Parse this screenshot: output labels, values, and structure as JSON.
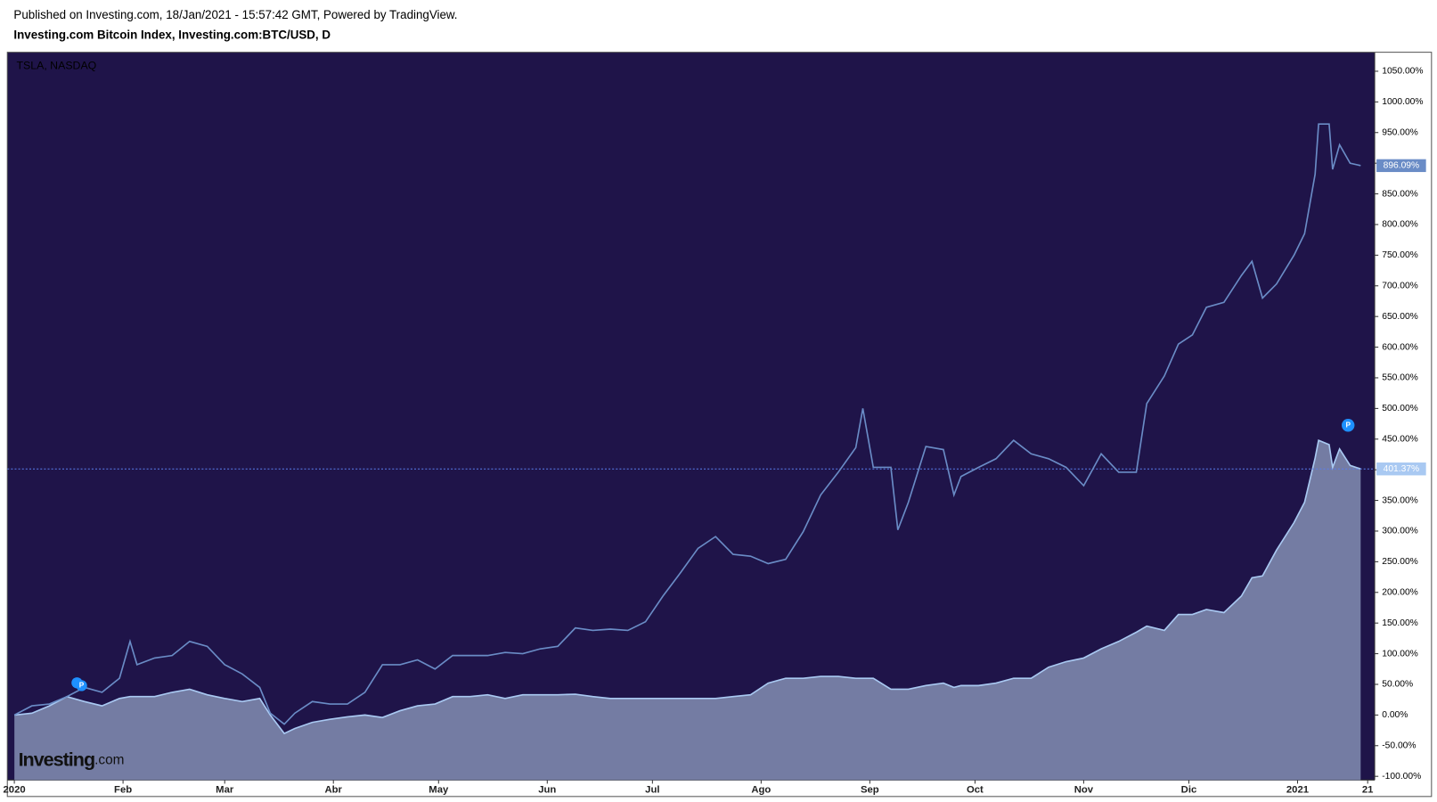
{
  "header": {
    "published": "Published on Investing.com, 18/Jan/2021 - 15:57:42 GMT, Powered by TradingView.",
    "symbol": "Investing.com Bitcoin Index, Investing.com:BTC/USD, D"
  },
  "logo": {
    "brand": "Investing",
    "suffix": ".com"
  },
  "chart_data": {
    "type": "line",
    "background": "#1f1449",
    "x": [
      0,
      5,
      10,
      15,
      20,
      25,
      30,
      33,
      35,
      40,
      45,
      50,
      55,
      60,
      65,
      70,
      73,
      77,
      80,
      85,
      90,
      95,
      100,
      105,
      110,
      115,
      120,
      125,
      130,
      135,
      140,
      145,
      150,
      155,
      160,
      165,
      170,
      175,
      180,
      185,
      190,
      195,
      200,
      205,
      210,
      215,
      220,
      225,
      230,
      235,
      240,
      242,
      245,
      250,
      252,
      255,
      260,
      265,
      268,
      270,
      275,
      280,
      285,
      290,
      295,
      300,
      305,
      310,
      315,
      320,
      323,
      328,
      332,
      336,
      340,
      345,
      350,
      353,
      356,
      360,
      365,
      368,
      371,
      372,
      375,
      376,
      378,
      381,
      384
    ],
    "xlim": [
      -2,
      388
    ],
    "xticks": [
      {
        "value": 0,
        "label": "2020"
      },
      {
        "value": 31,
        "label": "Feb"
      },
      {
        "value": 60,
        "label": "Mar"
      },
      {
        "value": 91,
        "label": "Abr"
      },
      {
        "value": 121,
        "label": "May"
      },
      {
        "value": 152,
        "label": "Jun"
      },
      {
        "value": 182,
        "label": "Jul"
      },
      {
        "value": 213,
        "label": "Ago"
      },
      {
        "value": 244,
        "label": "Sep"
      },
      {
        "value": 274,
        "label": "Oct"
      },
      {
        "value": 305,
        "label": "Nov"
      },
      {
        "value": 335,
        "label": "Dic"
      },
      {
        "value": 366,
        "label": "2021"
      },
      {
        "value": 386,
        "label": "21"
      }
    ],
    "ylim": [
      -106,
      1081
    ],
    "yticks": [
      {
        "value": -100,
        "label": "-100.00%"
      },
      {
        "value": -50,
        "label": "-50.00%"
      },
      {
        "value": 0,
        "label": "0.00%"
      },
      {
        "value": 50,
        "label": "50.00%"
      },
      {
        "value": 100,
        "label": "100.00%"
      },
      {
        "value": 150,
        "label": "150.00%"
      },
      {
        "value": 200,
        "label": "200.00%"
      },
      {
        "value": 250,
        "label": "250.00%"
      },
      {
        "value": 300,
        "label": "300.00%"
      },
      {
        "value": 350,
        "label": "350.00%"
      },
      {
        "value": 400,
        "label": "400.00%"
      },
      {
        "value": 450,
        "label": "450.00%"
      },
      {
        "value": 500,
        "label": "500.00%"
      },
      {
        "value": 550,
        "label": "550.00%"
      },
      {
        "value": 600,
        "label": "600.00%"
      },
      {
        "value": 650,
        "label": "650.00%"
      },
      {
        "value": 700,
        "label": "700.00%"
      },
      {
        "value": 750,
        "label": "750.00%"
      },
      {
        "value": 800,
        "label": "800.00%"
      },
      {
        "value": 850,
        "label": "850.00%"
      },
      {
        "value": 900,
        "label": "900.00%"
      },
      {
        "value": 950,
        "label": "950.00%"
      },
      {
        "value": 1000,
        "label": "1000.00%"
      },
      {
        "value": 1050,
        "label": "1050.00%"
      }
    ],
    "series": [
      {
        "style": "area",
        "color": "#a9c9f2",
        "fill": "#747ca3",
        "price_line": true,
        "last_value_label": "401.37%",
        "values": [
          0,
          3,
          15,
          30,
          22,
          15,
          27,
          30,
          30,
          30,
          37,
          42,
          33,
          27,
          22,
          27,
          0,
          -30,
          -22,
          -12,
          -7,
          -3,
          0,
          -4,
          7,
          15,
          18,
          30,
          30,
          33,
          27,
          33,
          33,
          33,
          34,
          30,
          27,
          27,
          27,
          27,
          27,
          27,
          27,
          30,
          33,
          52,
          60,
          60,
          63,
          63,
          60,
          60,
          60,
          42,
          42,
          42,
          48,
          52,
          45,
          48,
          48,
          52,
          60,
          60,
          78,
          87,
          93,
          108,
          120,
          135,
          145,
          138,
          164,
          164,
          172,
          167,
          194,
          224,
          227,
          269,
          314,
          347,
          419,
          448,
          441,
          404,
          434,
          407,
          401.37
        ]
      },
      {
        "name": "TSLA, NASDAQ",
        "style": "line",
        "color": "#6a8cc6",
        "last_value_label": "896.09%",
        "values": [
          0,
          15,
          18,
          30,
          45,
          37,
          60,
          120,
          82,
          93,
          97,
          120,
          112,
          82,
          67,
          45,
          3,
          -15,
          3,
          22,
          18,
          18,
          37,
          82,
          82,
          90,
          75,
          97,
          97,
          97,
          102,
          100,
          108,
          112,
          142,
          138,
          140,
          138,
          152,
          194,
          232,
          272,
          291,
          262,
          259,
          247,
          254,
          299,
          359,
          396,
          436,
          500,
          404,
          404,
          302,
          347,
          438,
          433,
          359,
          389,
          404,
          418,
          448,
          426,
          418,
          404,
          374,
          426,
          396,
          396,
          508,
          553,
          605,
          620,
          665,
          673,
          717,
          740,
          680,
          703,
          750,
          785,
          882,
          964,
          964,
          890,
          930,
          900,
          896.09
        ]
      }
    ]
  }
}
